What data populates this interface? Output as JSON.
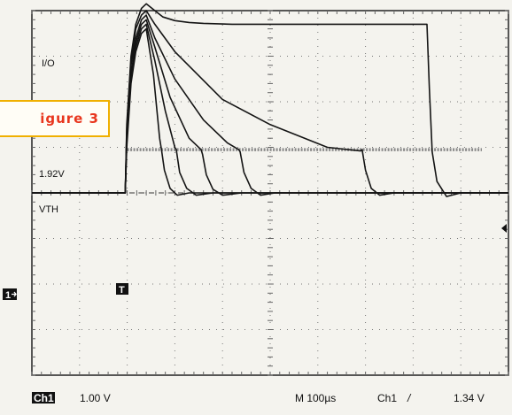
{
  "chart_data": {
    "type": "line",
    "title": "",
    "xlabel": "",
    "ylabel": "",
    "x_unit": "µs",
    "y_unit": "div",
    "xlim": [
      0,
      1000
    ],
    "ylim": [
      -4,
      4
    ],
    "grid": true,
    "labels": {
      "io": "I/O",
      "v192": "1.92V",
      "vth": "VTH"
    },
    "vth_level": 0.95,
    "vth_x_range": [
      200,
      1000
    ],
    "trigger_marker": "T",
    "ground_marker": "1",
    "readouts": {
      "channel": "Ch1",
      "volts_per_div": "1.00 V",
      "timebase": "M 100µs",
      "trigger_source": "Ch1",
      "trigger_slope": "/",
      "trigger_level": "1.34 V"
    },
    "series": [
      {
        "x": [
          0,
          196,
          199,
          208,
          218,
          230,
          240,
          258,
          275,
          300,
          330,
          360,
          420,
          600,
          800,
          829,
          834,
          840,
          850,
          870,
          900,
          1000
        ],
        "y": [
          0,
          0,
          1.5,
          3.0,
          3.7,
          4.05,
          4.15,
          4.0,
          3.86,
          3.78,
          3.74,
          3.72,
          3.7,
          3.7,
          3.7,
          3.7,
          2.3,
          0.9,
          0.25,
          -0.08,
          0.0,
          0.0
        ]
      },
      {
        "x": [
          0,
          196,
          199,
          208,
          218,
          230,
          240,
          258,
          300,
          400,
          500,
          620,
          690,
          693,
          700,
          712,
          730,
          760,
          1000
        ],
        "y": [
          0,
          0,
          1.4,
          2.9,
          3.6,
          3.9,
          4.0,
          3.7,
          3.1,
          2.05,
          1.5,
          1.0,
          0.92,
          0.95,
          0.5,
          0.1,
          -0.05,
          0.0,
          0.0
        ]
      },
      {
        "x": [
          0,
          196,
          199,
          208,
          218,
          230,
          240,
          258,
          300,
          360,
          410,
          434,
          437,
          445,
          460,
          480,
          510,
          1000
        ],
        "y": [
          0,
          0,
          1.3,
          2.8,
          3.4,
          3.8,
          3.9,
          3.4,
          2.5,
          1.6,
          1.1,
          0.95,
          0.9,
          0.45,
          0.1,
          -0.05,
          0.0,
          0.0
        ]
      },
      {
        "x": [
          0,
          196,
          199,
          208,
          218,
          230,
          240,
          258,
          290,
          330,
          355,
          358,
          366,
          380,
          400,
          440,
          1000
        ],
        "y": [
          0,
          0,
          1.2,
          2.6,
          3.3,
          3.7,
          3.8,
          3.2,
          2.1,
          1.2,
          0.95,
          0.85,
          0.4,
          0.08,
          -0.05,
          0.0,
          0.0
        ]
      },
      {
        "x": [
          0,
          196,
          199,
          208,
          218,
          230,
          240,
          258,
          280,
          300,
          303,
          310,
          325,
          345,
          380,
          1000
        ],
        "y": [
          0,
          0,
          1.1,
          2.5,
          3.2,
          3.6,
          3.7,
          2.9,
          1.8,
          1.0,
          0.95,
          0.45,
          0.1,
          -0.05,
          0.0,
          0.0
        ]
      },
      {
        "x": [
          0,
          196,
          199,
          208,
          218,
          230,
          240,
          255,
          268,
          272,
          278,
          290,
          305,
          330,
          1000
        ],
        "y": [
          0,
          0,
          1.0,
          2.4,
          3.1,
          3.5,
          3.6,
          2.6,
          1.2,
          0.95,
          0.5,
          0.1,
          -0.05,
          0.0,
          0.0
        ]
      }
    ]
  }
}
